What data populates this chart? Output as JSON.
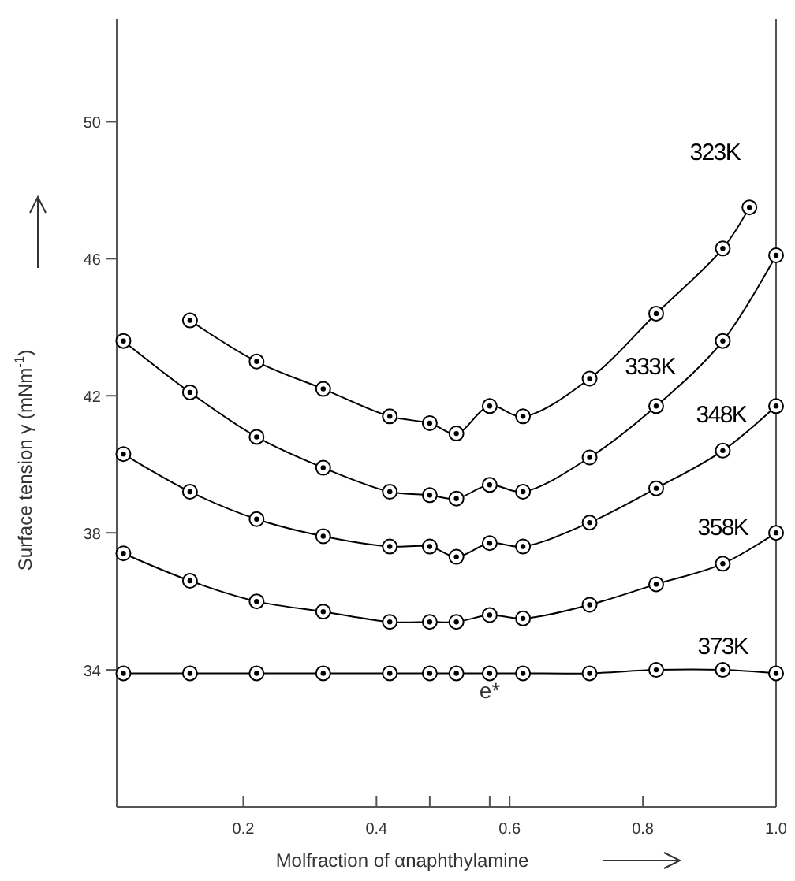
{
  "chart_data": {
    "type": "line",
    "xlabel": "Molfraction of αnaphthylamine",
    "ylabel": "Surface tension γ (mNm$^{-1}$)",
    "xlim": [
      0.01,
      1.0
    ],
    "ylim": [
      30,
      53
    ],
    "xticks": [
      0.2,
      0.4,
      {
        "value": 0.48,
        "label": null
      },
      {
        "value": 0.57,
        "label": null
      },
      0.6,
      0.8,
      {
        "value": 1.0,
        "label": "1.0"
      }
    ],
    "yticks": [
      34,
      38,
      42,
      46,
      50
    ],
    "grid": false,
    "marker": "circle",
    "line_style": "solid",
    "annotations": [
      "e*"
    ],
    "series": [
      {
        "name": "323K",
        "color": "#000000",
        "x": [
          0.12,
          0.22,
          0.32,
          0.42,
          0.48,
          0.52,
          0.57,
          0.62,
          0.72,
          0.82,
          0.92,
          0.96
        ],
        "values": [
          44.2,
          43.0,
          42.2,
          41.4,
          41.2,
          40.9,
          41.7,
          41.4,
          42.5,
          44.4,
          46.3,
          47.5
        ]
      },
      {
        "name": "333K",
        "color": "#000000",
        "x": [
          0.02,
          0.12,
          0.22,
          0.32,
          0.42,
          0.48,
          0.52,
          0.57,
          0.62,
          0.72,
          0.82,
          0.92,
          1.0
        ],
        "values": [
          43.6,
          42.1,
          40.8,
          39.9,
          39.2,
          39.1,
          39.0,
          39.4,
          39.2,
          40.2,
          41.7,
          43.6,
          46.1
        ]
      },
      {
        "name": "348K",
        "color": "#000000",
        "x": [
          0.02,
          0.12,
          0.22,
          0.32,
          0.42,
          0.48,
          0.52,
          0.57,
          0.62,
          0.72,
          0.82,
          0.92,
          1.0
        ],
        "values": [
          40.3,
          39.2,
          38.4,
          37.9,
          37.6,
          37.6,
          37.3,
          37.7,
          37.6,
          38.3,
          39.3,
          40.4,
          41.7
        ]
      },
      {
        "name": "358K",
        "color": "#000000",
        "x": [
          0.02,
          0.12,
          0.22,
          0.32,
          0.42,
          0.48,
          0.52,
          0.57,
          0.62,
          0.72,
          0.82,
          0.92,
          1.0
        ],
        "values": [
          37.4,
          36.6,
          36.0,
          35.7,
          35.4,
          35.4,
          35.4,
          35.6,
          35.5,
          35.9,
          36.5,
          37.1,
          38.0
        ]
      },
      {
        "name": "373K",
        "color": "#000000",
        "x": [
          0.02,
          0.12,
          0.22,
          0.32,
          0.42,
          0.48,
          0.52,
          0.57,
          0.62,
          0.72,
          0.82,
          0.92,
          1.0
        ],
        "values": [
          33.9,
          33.9,
          33.9,
          33.9,
          33.9,
          33.9,
          33.9,
          33.9,
          33.9,
          33.9,
          34.0,
          34.0,
          33.9
        ]
      }
    ]
  }
}
